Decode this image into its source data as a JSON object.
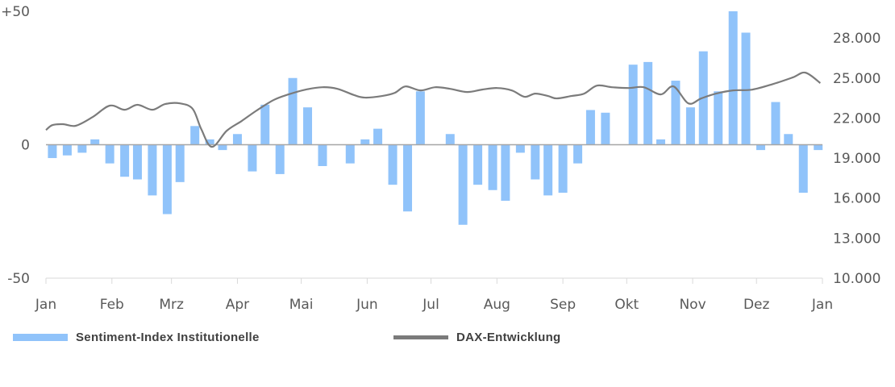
{
  "chart_data": {
    "type": "bar+line",
    "title": "",
    "x_axis": {
      "type": "date",
      "tick_labels": [
        "Jan",
        "Feb",
        "Mrz",
        "Apr",
        "Mai",
        "Jun",
        "Jul",
        "Aug",
        "Sep",
        "Okt",
        "Nov",
        "Dez",
        "Jan"
      ],
      "range": [
        "01-01",
        "12-31"
      ]
    },
    "y_left": {
      "range": [
        -50,
        50
      ],
      "tick_labels": [
        "+50",
        "0",
        "-50"
      ],
      "ticks": [
        50,
        0,
        -50
      ]
    },
    "y_right": {
      "range": [
        10000,
        30000
      ],
      "tick_labels": [
        "28.000",
        "25.000",
        "22.000",
        "19.000",
        "16.000",
        "13.000",
        "10.000"
      ],
      "ticks": [
        28000,
        25000,
        22000,
        19000,
        16000,
        13000,
        10000
      ]
    },
    "grid": false,
    "legend_placement": "bottom",
    "colors": {
      "bars": "#90C3FA",
      "line": "#7B7B7B",
      "zero_line": "#A6A6A6",
      "axis": "#D9D9D9",
      "text": "#595959"
    },
    "series": [
      {
        "name": "Sentiment-Index Institutionelle",
        "type": "bar",
        "axis": "left",
        "x": [
          "01-04",
          "01-11",
          "01-18",
          "01-24",
          "01-31",
          "02-07",
          "02-13",
          "02-20",
          "02-27",
          "03-05",
          "03-12",
          "03-19",
          "03-25",
          "04-01",
          "04-08",
          "04-14",
          "04-21",
          "04-27",
          "05-04",
          "05-11",
          "05-17",
          "05-24",
          "05-31",
          "06-06",
          "06-13",
          "06-20",
          "06-26",
          "07-03",
          "07-10",
          "07-16",
          "07-23",
          "07-30",
          "08-05",
          "08-12",
          "08-19",
          "08-25",
          "09-01",
          "09-08",
          "09-14",
          "09-21",
          "09-27",
          "10-04",
          "10-11",
          "10-17",
          "10-24",
          "10-31",
          "11-06",
          "11-13",
          "11-20",
          "11-26",
          "12-03",
          "12-10",
          "12-16",
          "12-23",
          "12-30"
        ],
        "values": [
          -5,
          -4,
          -3,
          2,
          -7,
          -12,
          -13,
          -19,
          -26,
          -14,
          7,
          2,
          -2,
          4,
          -10,
          15,
          -11,
          25,
          14,
          -8,
          0,
          -7,
          2,
          6,
          -15,
          -25,
          20,
          0,
          4,
          -30,
          -15,
          -17,
          -21,
          -3,
          -13,
          -19,
          -18,
          -7,
          13,
          12,
          0,
          30,
          31,
          2,
          24,
          14,
          35,
          20,
          50,
          42,
          -2,
          16,
          4,
          -18,
          -2
        ]
      },
      {
        "name": "DAX-Entwicklung",
        "type": "line",
        "axis": "right",
        "x": [
          "01-01",
          "01-04",
          "01-09",
          "01-15",
          "01-23",
          "01-31",
          "02-07",
          "02-13",
          "02-20",
          "02-26",
          "03-05",
          "03-11",
          "03-15",
          "03-20",
          "03-27",
          "04-03",
          "04-10",
          "04-18",
          "04-25",
          "05-03",
          "05-11",
          "05-18",
          "05-26",
          "05-31",
          "06-08",
          "06-14",
          "06-19",
          "06-26",
          "07-03",
          "07-10",
          "07-18",
          "07-25",
          "08-01",
          "08-08",
          "08-14",
          "08-19",
          "08-25",
          "08-29",
          "09-05",
          "09-11",
          "09-17",
          "09-24",
          "10-02",
          "10-09",
          "10-17",
          "10-23",
          "10-30",
          "11-05",
          "11-12",
          "11-20",
          "11-29",
          "12-09",
          "12-18",
          "12-24",
          "12-31"
        ],
        "values": [
          21100,
          21470,
          21540,
          21420,
          22080,
          22930,
          22620,
          22990,
          22620,
          23050,
          23100,
          22680,
          21170,
          19840,
          21050,
          21780,
          22560,
          23350,
          23770,
          24130,
          24310,
          24190,
          23710,
          23530,
          23650,
          23890,
          24370,
          24070,
          24310,
          24190,
          23950,
          24130,
          24250,
          24070,
          23590,
          23830,
          23650,
          23470,
          23650,
          23830,
          24430,
          24310,
          24250,
          24310,
          23770,
          24370,
          23100,
          23470,
          23830,
          24070,
          24130,
          24560,
          25040,
          25400,
          24620
        ]
      }
    ]
  },
  "legend": {
    "bars_label": "Sentiment-Index Institutionelle",
    "line_label": "DAX-Entwicklung"
  }
}
